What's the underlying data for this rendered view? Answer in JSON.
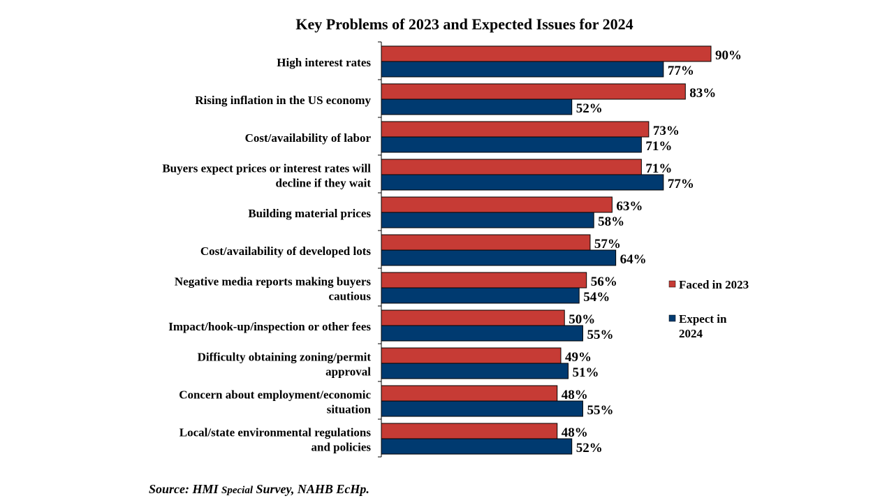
{
  "chart_data": {
    "type": "bar",
    "orientation": "horizontal",
    "title": "Key Problems of 2023 and Expected Issues for 2024",
    "categories": [
      [
        "High interest rates"
      ],
      [
        "Rising inflation in the US economy"
      ],
      [
        "Cost/availability of labor"
      ],
      [
        "Buyers expect prices or interest rates will",
        "decline if they wait"
      ],
      [
        "Building material prices"
      ],
      [
        "Cost/availability of developed lots"
      ],
      [
        "Negative media reports making buyers",
        "cautious"
      ],
      [
        "Impact/hook-up/inspection or other fees"
      ],
      [
        "Difficulty obtaining zoning/permit",
        "approval"
      ],
      [
        "Concern about employment/economic",
        "situation"
      ],
      [
        "Local/state environmental regulations",
        "and policies"
      ]
    ],
    "series": [
      {
        "name": "Faced in 2023",
        "legend_lines": [
          "Faced in 2023"
        ],
        "color": "#C63B35",
        "values": [
          90,
          83,
          73,
          71,
          63,
          57,
          56,
          50,
          49,
          48,
          48
        ]
      },
      {
        "name": "Expect in 2024",
        "legend_lines": [
          "Expect in",
          "2024"
        ],
        "color": "#003A70",
        "values": [
          77,
          52,
          71,
          77,
          58,
          64,
          54,
          55,
          51,
          55,
          52
        ]
      }
    ],
    "value_suffix": "%",
    "xlim": [
      0,
      100
    ],
    "grid": false,
    "legend_position": "right",
    "data_labels": true
  },
  "source": {
    "prefix": "Source: HMI ",
    "small": "Special",
    "suffix": " Survey, NAHB EcHp."
  }
}
